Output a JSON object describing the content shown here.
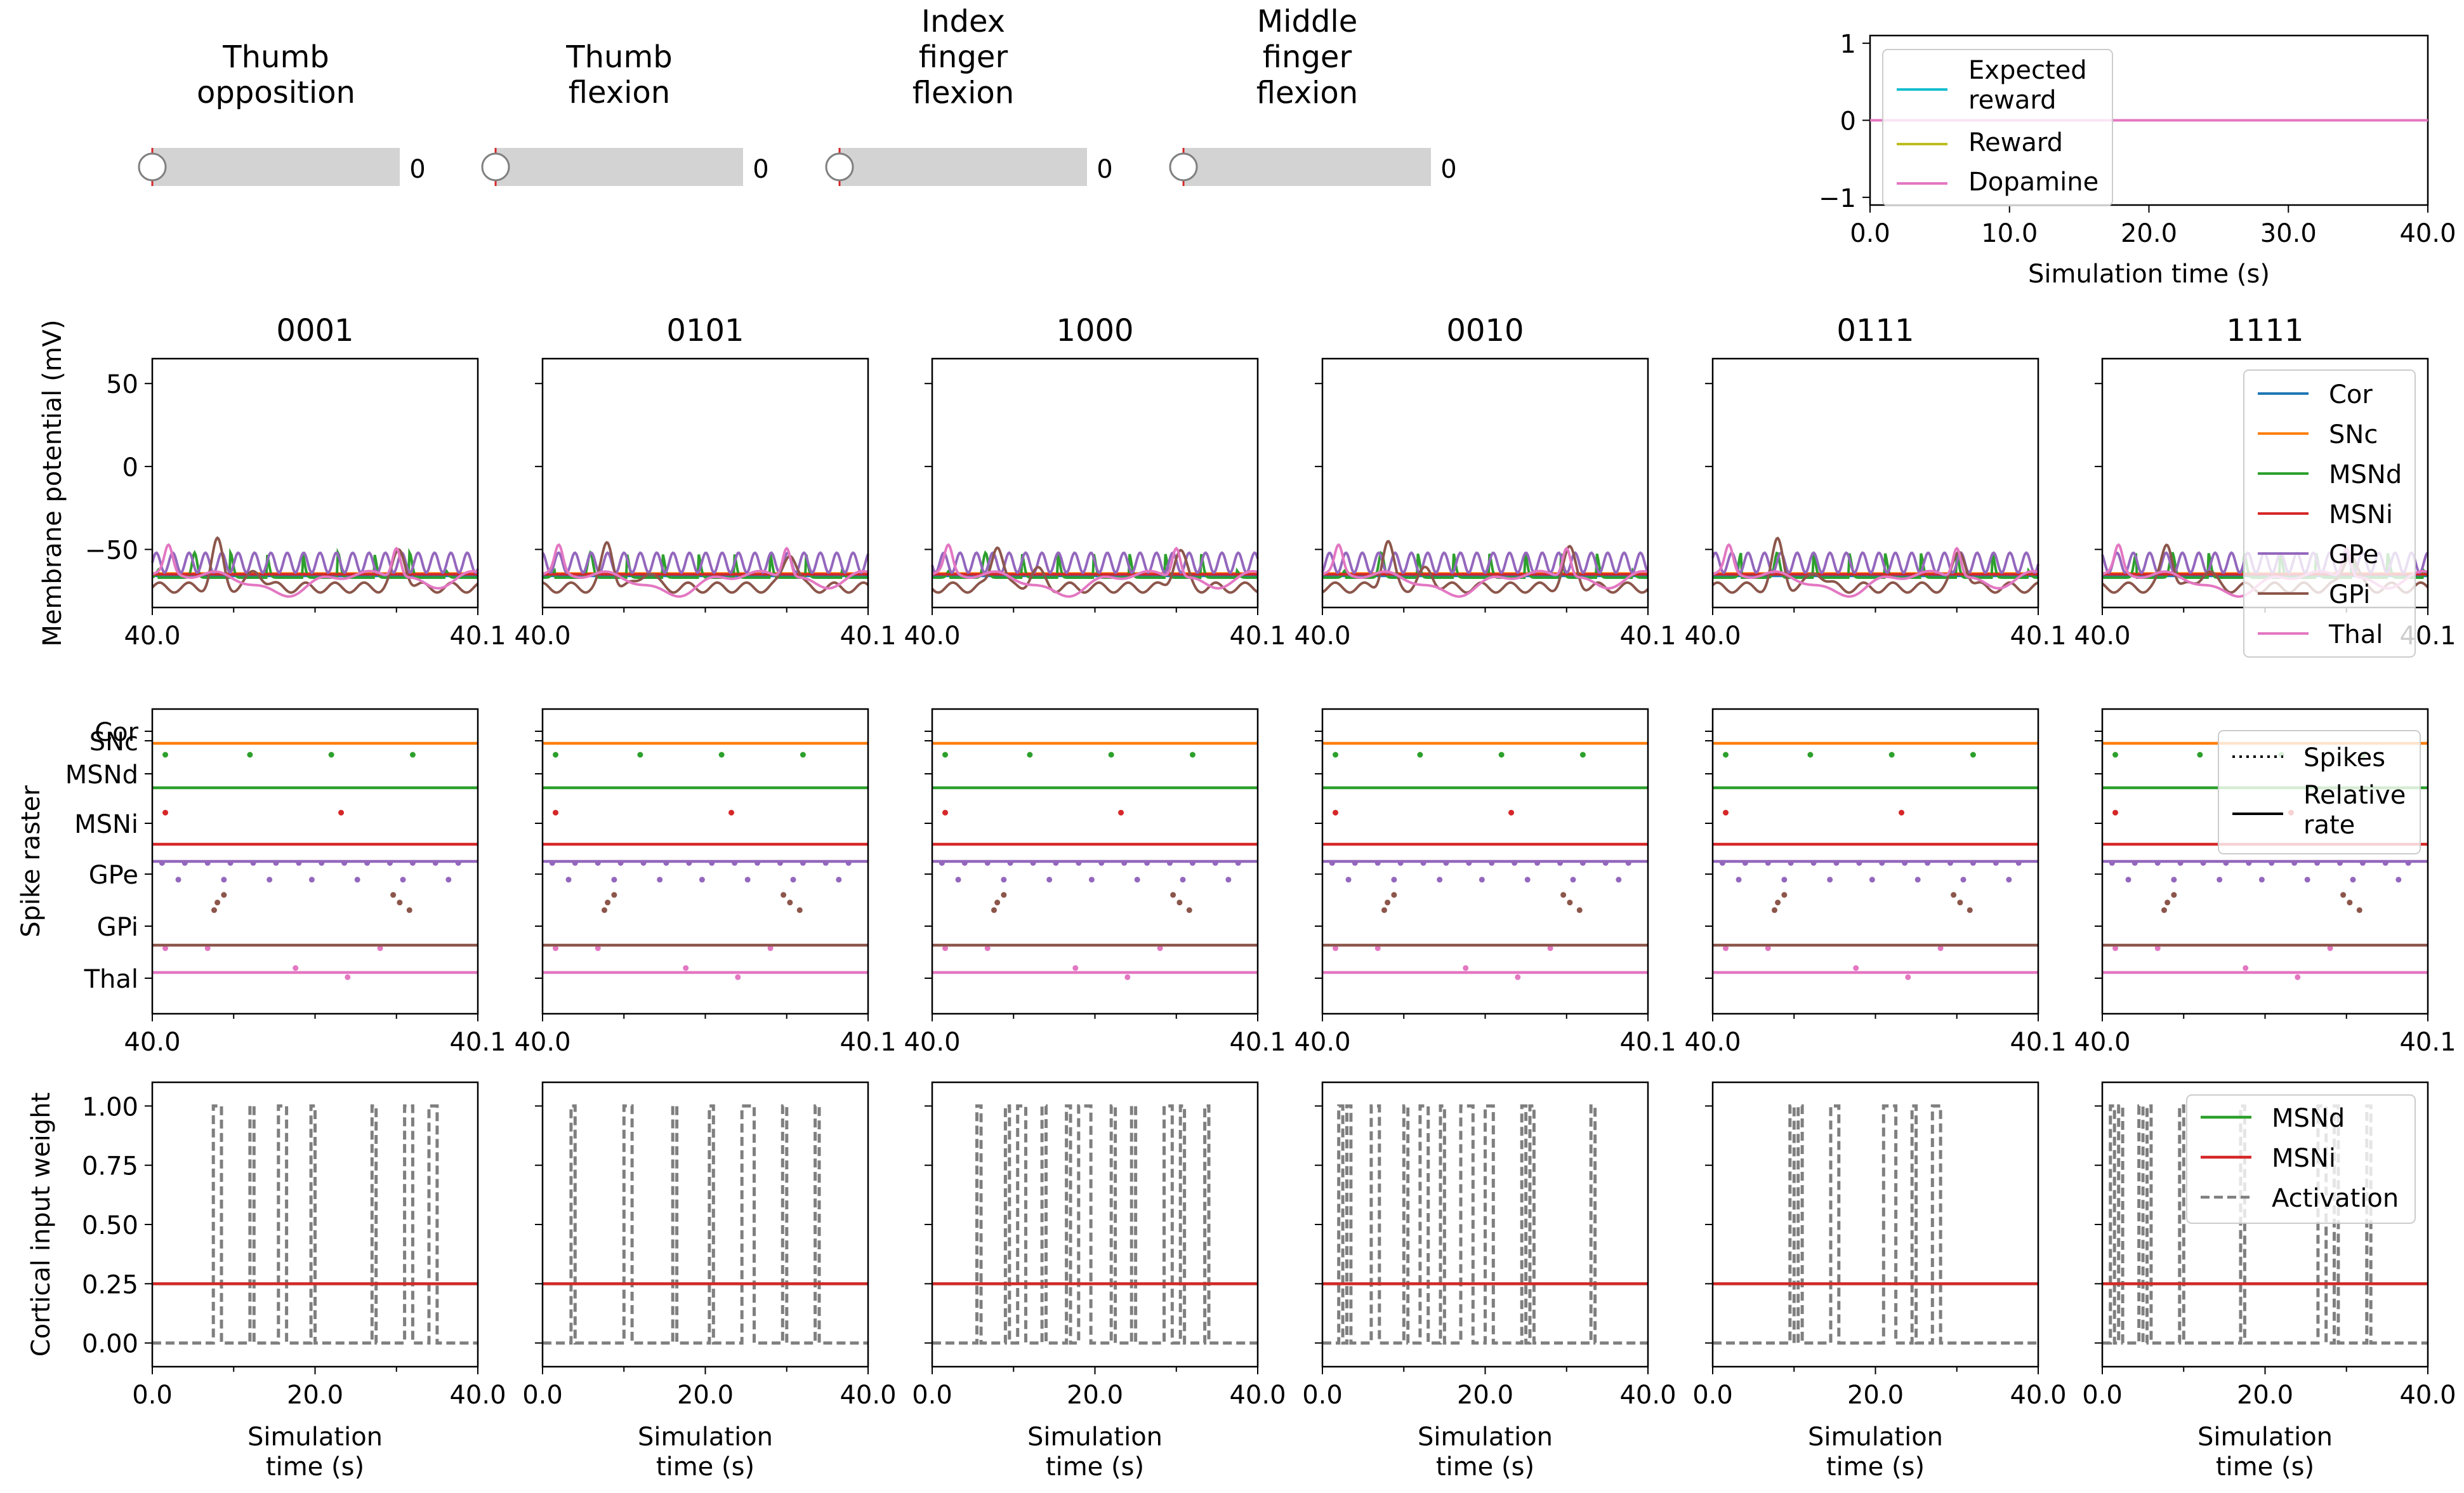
{
  "sliders": [
    {
      "label": "Thumb\nopposition",
      "value": 0,
      "value_text": "0"
    },
    {
      "label": "Thumb\nflexion",
      "value": 0,
      "value_text": "0"
    },
    {
      "label": "Index\nfinger\nflexion",
      "value": 0,
      "value_text": "0"
    },
    {
      "label": "Middle\nfinger\nflexion",
      "value": 0,
      "value_text": "0"
    }
  ],
  "colors": {
    "Cor": "#1f77b4",
    "SNc": "#ff7f0e",
    "MSNd": "#2ca02c",
    "MSNi": "#d62728",
    "GPe": "#9467bd",
    "GPi": "#8c564b",
    "Thal": "#e377c2",
    "expected_reward": "#17becf",
    "reward": "#bcbd22",
    "dopamine": "#e377c2",
    "activation": "#7f7f7f",
    "slider_track": "#d3d3d3"
  },
  "chart_data": [
    {
      "id": "reward",
      "type": "line",
      "xlabel": "Simulation time (s)",
      "xlim": [
        0,
        40
      ],
      "ylim": [
        -1.1,
        1.1
      ],
      "xticks": [
        "0.0",
        "10.0",
        "20.0",
        "30.0",
        "40.0"
      ],
      "yticks": [
        "1",
        "0",
        "−1"
      ],
      "legend": "upper-left",
      "series": [
        {
          "name": "Expected\nreward",
          "x": [
            0,
            40
          ],
          "y": [
            0,
            0
          ]
        },
        {
          "name": "Reward",
          "x": [
            0,
            40
          ],
          "y": [
            0,
            0
          ]
        },
        {
          "name": "Dopamine",
          "x": [
            0,
            40
          ],
          "y": [
            0,
            0
          ]
        }
      ]
    },
    {
      "id": "membrane",
      "type": "line",
      "ylabel": "Membrane potential (mV)",
      "xlim": [
        40.0,
        40.1
      ],
      "ylim": [
        -85,
        65
      ],
      "xticks": [
        "40.0",
        "40.1"
      ],
      "yticks": [
        "50",
        "0",
        "−50"
      ],
      "panel_titles": [
        "0001",
        "0101",
        "1000",
        "0010",
        "0111",
        "1111"
      ],
      "legend": "upper-right (last panel)",
      "series": [
        {
          "name": "Cor",
          "approx_level": -65
        },
        {
          "name": "SNc",
          "approx_level": -63
        },
        {
          "name": "MSNd",
          "approx_level": -65
        },
        {
          "name": "MSNi",
          "approx_level": -65
        },
        {
          "name": "GPe",
          "approx_level": -58
        },
        {
          "name": "GPi",
          "approx_level": -70
        },
        {
          "name": "Thal",
          "approx_level": -62
        }
      ]
    },
    {
      "id": "raster",
      "type": "scatter",
      "ylabel": "Spike raster",
      "xlim": [
        40.0,
        40.1
      ],
      "xticks": [
        "40.0",
        "40.1"
      ],
      "yticks": [
        "Cor",
        "SNc",
        "MSNd",
        "MSNi",
        "GPe",
        "GPi",
        "Thal"
      ],
      "legend": {
        "position": "upper-right (last panel)",
        "entries": [
          "Spikes",
          "Relative\nrate"
        ]
      },
      "rate_lines": [
        {
          "name": "SNc",
          "level": 0.11
        },
        {
          "name": "MSNd",
          "level": 0.24
        },
        {
          "name": "MSNi",
          "level": 0.41
        },
        {
          "name": "GPe",
          "level": 0.48
        },
        {
          "name": "GPi",
          "level": 0.72
        },
        {
          "name": "Thal",
          "level": 0.8
        }
      ],
      "spikes": [
        {
          "name": "MSNd",
          "level": 0.15,
          "times": [
            40.004,
            40.03,
            40.055,
            40.08
          ]
        },
        {
          "name": "MSNi",
          "level": 0.34,
          "times": [
            40.004,
            40.058
          ]
        },
        {
          "name": "GPe",
          "level": 0.505,
          "times": [
            40.003,
            40.01,
            40.017,
            40.024,
            40.031,
            40.038,
            40.045,
            40.052,
            40.059,
            40.066,
            40.073,
            40.08,
            40.087,
            40.094
          ]
        },
        {
          "name": "GPe",
          "level": 0.56,
          "times": [
            40.008,
            40.022,
            40.036,
            40.049,
            40.063,
            40.077,
            40.091
          ]
        },
        {
          "name": "GPi",
          "level": 0.61,
          "times": [
            40.022,
            40.074
          ]
        },
        {
          "name": "GPi",
          "level": 0.635,
          "times": [
            40.02,
            40.076
          ]
        },
        {
          "name": "GPi",
          "level": 0.66,
          "times": [
            40.019,
            40.079
          ]
        },
        {
          "name": "Thal",
          "level": 0.785,
          "times": [
            40.004,
            40.017,
            40.07
          ]
        },
        {
          "name": "Thal",
          "level": 0.85,
          "times": [
            40.044
          ]
        },
        {
          "name": "Thal",
          "level": 0.88,
          "times": [
            40.06
          ]
        }
      ]
    },
    {
      "id": "weights",
      "type": "line",
      "ylabel": "Cortical input weight",
      "xlabel": "Simulation\ntime (s)",
      "xlim": [
        0,
        40
      ],
      "ylim": [
        -0.1,
        1.1
      ],
      "xticks": [
        "0.0",
        "20.0",
        "40.0"
      ],
      "yticks": [
        "1.00",
        "0.75",
        "0.50",
        "0.25",
        "0.00"
      ],
      "legend": "upper-right (last panel)",
      "series": [
        {
          "name": "MSNd",
          "y": 0.25
        },
        {
          "name": "MSNi",
          "y": 0.25
        },
        {
          "name": "Activation",
          "baseline": 0,
          "pulse_height": 1.0
        }
      ],
      "activation_pulses": [
        [
          [
            7.5,
            8.5
          ],
          [
            12.0,
            12.5
          ],
          [
            15.5,
            16.5
          ],
          [
            19.5,
            20.0
          ],
          [
            27.0,
            27.5
          ],
          [
            31.0,
            32.0
          ],
          [
            34.0,
            35.0
          ]
        ],
        [
          [
            3.5,
            4.0
          ],
          [
            10.0,
            11.0
          ],
          [
            16.0,
            16.5
          ],
          [
            20.5,
            21.0
          ],
          [
            24.5,
            26.0
          ],
          [
            29.5,
            30.0
          ],
          [
            33.5,
            34.0
          ]
        ],
        [
          [
            5.5,
            6.0
          ],
          [
            9.0,
            9.5
          ],
          [
            10.5,
            11.5
          ],
          [
            13.5,
            14.0
          ],
          [
            16.5,
            17.0
          ],
          [
            18.0,
            19.5
          ],
          [
            22.0,
            22.5
          ],
          [
            24.5,
            25.0
          ],
          [
            28.5,
            29.5
          ],
          [
            30.5,
            31.0
          ],
          [
            33.5,
            34.0
          ]
        ],
        [
          [
            2.0,
            2.5
          ],
          [
            3.0,
            3.5
          ],
          [
            6.0,
            7.0
          ],
          [
            10.0,
            10.5
          ],
          [
            12.0,
            13.0
          ],
          [
            14.5,
            15.0
          ],
          [
            17.0,
            18.5
          ],
          [
            20.0,
            21.0
          ],
          [
            24.5,
            25.0
          ],
          [
            25.5,
            26.0
          ],
          [
            33.0,
            33.5
          ]
        ],
        [
          [
            9.5,
            10.0
          ],
          [
            10.5,
            11.0
          ],
          [
            14.5,
            15.5
          ],
          [
            21.0,
            22.5
          ],
          [
            24.5,
            25.0
          ],
          [
            27.0,
            28.0
          ]
        ],
        [
          [
            1.0,
            1.5
          ],
          [
            2.0,
            2.5
          ],
          [
            4.5,
            5.0
          ],
          [
            5.5,
            6.0
          ],
          [
            9.5,
            10.0
          ],
          [
            17.0,
            17.5
          ],
          [
            26.5,
            27.5
          ],
          [
            28.5,
            29.0
          ],
          [
            32.5,
            33.0
          ]
        ]
      ]
    }
  ]
}
